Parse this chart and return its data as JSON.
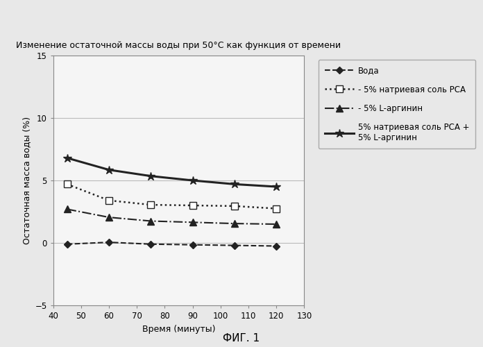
{
  "title": "Изменение остаточной массы воды при 50°C как функция от времени",
  "xlabel": "Время (минуты)",
  "ylabel": "Остаточная масса воды (%)",
  "footer": "ФИГ. 1",
  "xlim": [
    40,
    130
  ],
  "ylim": [
    -5,
    15
  ],
  "xticks": [
    40,
    50,
    60,
    70,
    80,
    90,
    100,
    110,
    120,
    130
  ],
  "yticks": [
    -5,
    0,
    5,
    10,
    15
  ],
  "series": [
    {
      "label": "Вода",
      "x": [
        45,
        60,
        75,
        90,
        105,
        120
      ],
      "y": [
        -0.1,
        0.05,
        -0.1,
        -0.15,
        -0.2,
        -0.25
      ],
      "linestyle": "--",
      "marker": "D",
      "markersize": 5,
      "color": "#222222",
      "markerfacecolor": "#222222",
      "linewidth": 1.5
    },
    {
      "label": "- 5% натриевая соль PCA",
      "x": [
        45,
        60,
        75,
        90,
        105,
        120
      ],
      "y": [
        4.7,
        3.4,
        3.05,
        3.0,
        2.95,
        2.75
      ],
      "linestyle": ":",
      "marker": "s",
      "markersize": 7,
      "color": "#222222",
      "markerfacecolor": "#ffffff",
      "linewidth": 1.8
    },
    {
      "label": "- 5% L-аргинин",
      "x": [
        45,
        60,
        75,
        90,
        105,
        120
      ],
      "y": [
        2.7,
        2.05,
        1.75,
        1.65,
        1.55,
        1.5
      ],
      "linestyle": "-.",
      "marker": "^",
      "markersize": 7,
      "color": "#222222",
      "markerfacecolor": "#222222",
      "linewidth": 1.5
    },
    {
      "label": "5% натриевая соль PCA +\n5% L-аргинин",
      "x": [
        45,
        60,
        75,
        90,
        105,
        120
      ],
      "y": [
        6.8,
        5.85,
        5.35,
        5.0,
        4.7,
        4.5
      ],
      "linestyle": "-",
      "marker": "*",
      "markersize": 9,
      "color": "#222222",
      "markerfacecolor": "#222222",
      "linewidth": 2.2
    }
  ],
  "background_color": "#e8e8e8",
  "plot_bg_color": "#f5f5f5",
  "grid_color": "#bbbbbb",
  "legend_labels": [
    "Вода",
    "- 5% натриевая соль PCA",
    "- 5% L-аргинин",
    "5% натриевая соль PCA +\n5% L-аргинин"
  ]
}
